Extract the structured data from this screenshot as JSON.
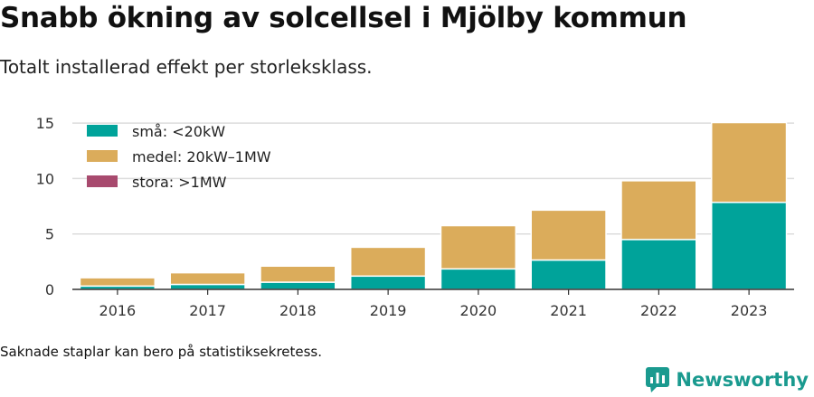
{
  "chart_data": {
    "type": "bar",
    "stacked": true,
    "title": "Snabb ökning av solcellsel i Mjölby kommun",
    "subtitle": "Totalt installerad effekt per storleksklass.",
    "xlabel": "",
    "ylabel": "",
    "categories": [
      "2016",
      "2017",
      "2018",
      "2019",
      "2020",
      "2021",
      "2022",
      "2023"
    ],
    "series": [
      {
        "name": "små: <20kW",
        "color": "#00a39a",
        "values": [
          0.3,
          0.45,
          0.65,
          1.2,
          1.85,
          2.65,
          4.5,
          7.85
        ]
      },
      {
        "name": "medel: 20kW–1MW",
        "color": "#dbac5b",
        "values": [
          0.75,
          1.05,
          1.45,
          2.6,
          3.9,
          4.5,
          5.3,
          7.2
        ]
      },
      {
        "name": "stora: >1MW",
        "color": "#a84a6e",
        "values": [
          0,
          0,
          0,
          0,
          0,
          0,
          0,
          0
        ]
      }
    ],
    "ylim": [
      0,
      15.5
    ],
    "yticks": [
      0,
      5,
      10,
      15
    ],
    "grid": true,
    "legend": "top-left"
  },
  "footer": {
    "note": "Saknade staplar kan bero på statistiksekretess.",
    "brand": "Newsworthy",
    "brand_icon": "bar-chart-speech-bubble-icon",
    "brand_color": "#1a9a8f"
  }
}
